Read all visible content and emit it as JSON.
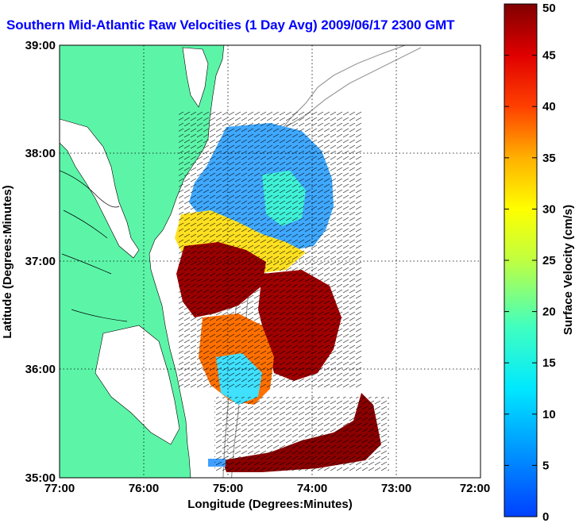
{
  "title": "Southern Mid-Atlantic Raw Velocities (1 Day Avg) 2009/06/17 2300 GMT",
  "map": {
    "xlabel": "Longitude (Degrees:Minutes)",
    "ylabel": "Latitude (Degrees:Minutes)",
    "x_ticks": [
      "77:00",
      "76:00",
      "75:00",
      "74:00",
      "73:00",
      "72:00"
    ],
    "y_ticks": [
      "39:00",
      "38:00",
      "37:00",
      "36:00",
      "35:00"
    ],
    "xlim": [
      -77,
      -72
    ],
    "ylim": [
      35,
      39
    ],
    "grid": "dotted",
    "land_color": "#5cf5a8",
    "water_color": "#ffffff"
  },
  "colorbar": {
    "label": "Surface Velocity (cm/s)",
    "ticks": [
      "0",
      "5",
      "10",
      "15",
      "20",
      "25",
      "30",
      "35",
      "40",
      "45",
      "50"
    ],
    "range": [
      0,
      50
    ],
    "colormap": "jet"
  }
}
